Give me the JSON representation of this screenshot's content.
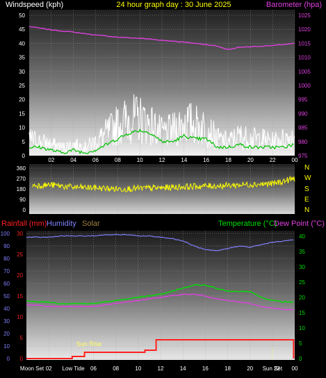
{
  "header": {
    "left": "Windspeed (kph)",
    "center": "24 hour graph day : 30 June 2025",
    "right": "Barometer (hpa)"
  },
  "colors": {
    "windspeed": "#ffffff",
    "gust_line": "#00c000",
    "barometer": "#e040e0",
    "wind_direction": "#ffff00",
    "rainfall": "#ff2020",
    "humidity": "#8080ff",
    "solar": "#a08040",
    "temperature": "#00e000",
    "dew_point": "#e040e0",
    "sun_marker": "#ffff60"
  },
  "chart_data": [
    {
      "type": "line",
      "name": "wind-and-barometer",
      "x_ticks": [
        "02",
        "04",
        "06",
        "08",
        "10",
        "12",
        "14",
        "16",
        "18",
        "20",
        "22",
        "00"
      ],
      "ylabel": "Windspeed (kph)",
      "ylim": [
        0,
        50
      ],
      "y_ticks": [
        0,
        5,
        10,
        15,
        20,
        25,
        30,
        35,
        40,
        45,
        50
      ],
      "y2label": "Barometer (hpa)",
      "y2lim": [
        975,
        1025
      ],
      "y2_ticks": [
        975,
        980,
        985,
        990,
        995,
        1000,
        1005,
        1010,
        1015,
        1020,
        1025
      ],
      "x_hours": [
        0,
        1,
        2,
        3,
        4,
        5,
        6,
        7,
        8,
        9,
        10,
        11,
        12,
        13,
        14,
        15,
        16,
        17,
        18,
        19,
        20,
        21,
        22,
        23,
        24
      ],
      "series": [
        {
          "key": "windspeed",
          "values": [
            6,
            5,
            4,
            3,
            4,
            3,
            5,
            8,
            11,
            13,
            13,
            11,
            8,
            9,
            12,
            11,
            10,
            6,
            5,
            7,
            6,
            6,
            5,
            6,
            7
          ]
        },
        {
          "key": "gust_line",
          "values": [
            3,
            3,
            2,
            1,
            2,
            1,
            2,
            4,
            6,
            8,
            9,
            8,
            5,
            5,
            7,
            6,
            6,
            3,
            3,
            4,
            3,
            3,
            3,
            3,
            4
          ]
        },
        {
          "key": "barometer",
          "values": [
            1021,
            1020.4,
            1019.8,
            1019.4,
            1019,
            1018.5,
            1018,
            1017.6,
            1017.2,
            1017,
            1016.8,
            1016.5,
            1016.1,
            1015.8,
            1015.4,
            1015,
            1014.6,
            1014,
            1012.8,
            1013.6,
            1013.8,
            1014,
            1014.2,
            1014.6,
            1015
          ]
        }
      ]
    },
    {
      "type": "line",
      "name": "wind-direction",
      "y_ticks": [
        0,
        90,
        180,
        270,
        360
      ],
      "ylim": [
        0,
        360
      ],
      "compass": [
        "N",
        "W",
        "S",
        "E",
        "N"
      ],
      "x_hours": [
        0,
        2,
        4,
        6,
        8,
        10,
        12,
        14,
        16,
        18,
        20,
        22,
        24
      ],
      "series": [
        {
          "key": "wind_direction",
          "values": [
            210,
            215,
            195,
            190,
            180,
            185,
            190,
            200,
            205,
            210,
            220,
            225,
            270
          ]
        }
      ]
    },
    {
      "type": "line",
      "name": "rain-humidity-temperature",
      "labels": {
        "rainfall": "Rainfall (mm)",
        "humidity": "Humidity",
        "solar": "Solar",
        "temperature": "Temperature (°C)",
        "dew_point": "Dew Point (°C)"
      },
      "rain_ticks": [
        0,
        5,
        10,
        15,
        20,
        25,
        30
      ],
      "rain_lim": [
        0,
        30
      ],
      "humidity_ticks": [
        0,
        10,
        20,
        30,
        40,
        50,
        60,
        70,
        80,
        90,
        100
      ],
      "humidity_lim": [
        0,
        100
      ],
      "temp_ticks": [
        0,
        5,
        10,
        15,
        20,
        25,
        30,
        35,
        40
      ],
      "temp_lim": [
        0,
        40
      ],
      "x_labels": [
        {
          "hour": 2,
          "text": "02"
        },
        {
          "hour": 6,
          "text": "06"
        },
        {
          "hour": 8,
          "text": "08"
        },
        {
          "hour": 10,
          "text": "10"
        },
        {
          "hour": 12,
          "text": "12"
        },
        {
          "hour": 14,
          "text": "14"
        },
        {
          "hour": 16,
          "text": "16"
        },
        {
          "hour": 18,
          "text": "18"
        },
        {
          "hour": 20,
          "text": "20"
        },
        {
          "hour": 24,
          "text": "00"
        }
      ],
      "events": [
        {
          "hour": 0.5,
          "text": "Moon Set"
        },
        {
          "hour": 4.2,
          "text": "Low Tide"
        },
        {
          "hour": 5.1,
          "text": "Sun Rise"
        },
        {
          "hour": 22.0,
          "text": "Sun Set"
        },
        {
          "hour": 22.4,
          "text": "22"
        }
      ],
      "x_hours": [
        0,
        1,
        2,
        3,
        4,
        5,
        6,
        7,
        8,
        9,
        10,
        11,
        12,
        13,
        14,
        15,
        16,
        17,
        18,
        19,
        20,
        21,
        22,
        23,
        24
      ],
      "series": [
        {
          "key": "humidity",
          "values": [
            97,
            97,
            97,
            98,
            98,
            98,
            98,
            99,
            99,
            99,
            98,
            98,
            97,
            96,
            94,
            90,
            87,
            86,
            88,
            90,
            89,
            91,
            93,
            94,
            95
          ]
        },
        {
          "key": "temperature",
          "values": [
            19,
            18.5,
            18.5,
            18,
            18,
            18,
            18,
            18.5,
            19,
            19.5,
            20,
            20.5,
            21,
            22,
            23,
            24,
            24,
            23,
            22,
            22,
            22,
            20,
            19,
            18.5,
            18.5
          ]
        },
        {
          "key": "dew_point",
          "values": [
            17.5,
            17.5,
            17,
            17,
            17,
            17,
            17,
            17.5,
            18,
            18.5,
            19,
            19.5,
            20,
            20.5,
            21,
            21,
            20.5,
            19.5,
            19,
            18.5,
            18,
            17,
            16.5,
            16,
            16
          ]
        },
        {
          "key": "rainfall",
          "points": [
            [
              0,
              0
            ],
            [
              4.1,
              0
            ],
            [
              4.1,
              0.5
            ],
            [
              5.2,
              0.5
            ],
            [
              5.2,
              1.5
            ],
            [
              10.6,
              1.5
            ],
            [
              10.6,
              2
            ],
            [
              11.6,
              2
            ],
            [
              11.6,
              4.5
            ],
            [
              23.9,
              4.5
            ],
            [
              23.9,
              0
            ]
          ]
        }
      ]
    }
  ]
}
